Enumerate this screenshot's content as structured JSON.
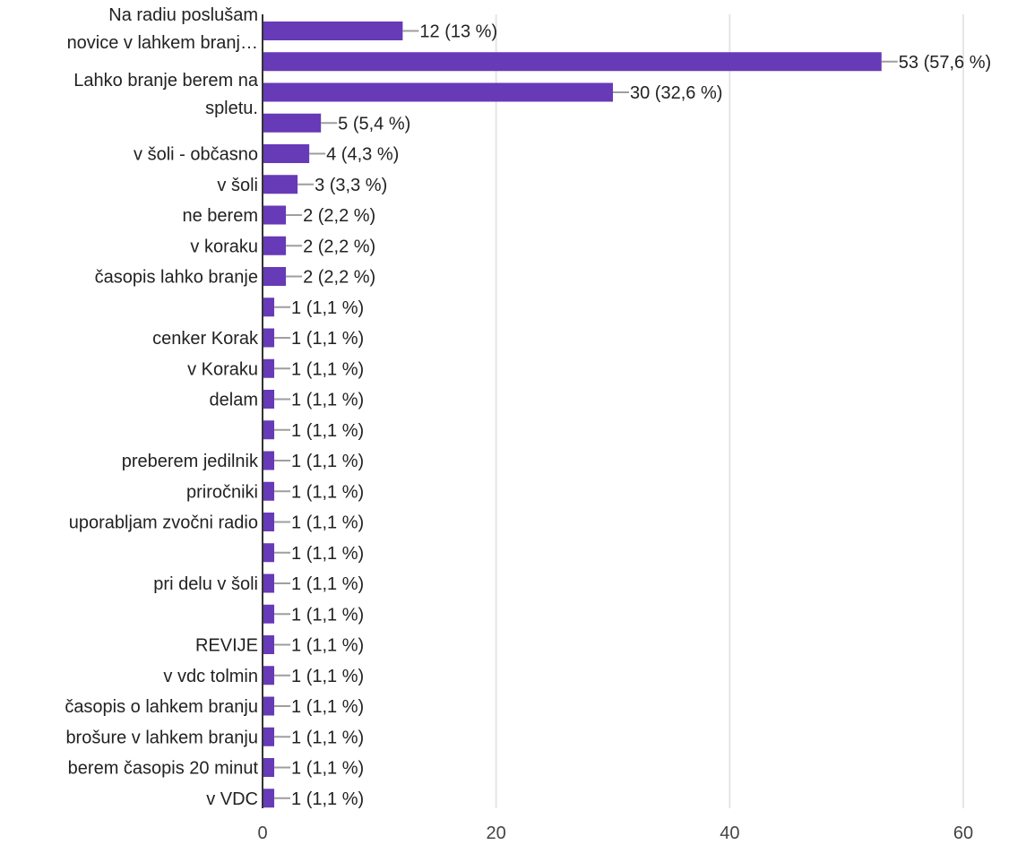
{
  "chart_data": {
    "type": "bar",
    "orientation": "horizontal",
    "title": "",
    "xlabel": "",
    "ylabel": "",
    "xlim": [
      0,
      60
    ],
    "xticks": [
      0,
      20,
      40,
      60
    ],
    "grid": true,
    "bar_color": "#673ab7",
    "categories": [
      "Na radiu poslušam novice v lahkem branj…",
      "Lahko branje berem na spletu.",
      "",
      "",
      "v šoli - občasno",
      "v šoli",
      "ne berem",
      "v koraku",
      "časopis lahko branje",
      "",
      "cenker Korak",
      "v Koraku",
      "delam",
      "",
      "preberem jedilnik",
      "priročniki",
      "uporabljam zvočni radio",
      "",
      "pri delu v šoli",
      "",
      "REVIJE",
      "v vdc tolmin",
      "časopis o lahkem branju",
      "brošure v lahkem branju",
      "berem časopis 20 minut",
      "v VDC"
    ],
    "values": [
      12,
      53,
      30,
      5,
      4,
      3,
      2,
      2,
      2,
      1,
      1,
      1,
      1,
      1,
      1,
      1,
      1,
      1,
      1,
      1,
      1,
      1,
      1,
      1,
      1,
      1
    ],
    "value_labels": [
      "12 (13 %)",
      "53 (57,6 %)",
      "30 (32,6 %)",
      "5 (5,4 %)",
      "4 (4,3 %)",
      "3 (3,3 %)",
      "2 (2,2 %)",
      "2 (2,2 %)",
      "2 (2,2 %)",
      "1 (1,1 %)",
      "1 (1,1 %)",
      "1 (1,1 %)",
      "1 (1,1 %)",
      "1 (1,1 %)",
      "1 (1,1 %)",
      "1 (1,1 %)",
      "1 (1,1 %)",
      "1 (1,1 %)",
      "1 (1,1 %)",
      "1 (1,1 %)",
      "1 (1,1 %)",
      "1 (1,1 %)",
      "1 (1,1 %)",
      "1 (1,1 %)",
      "1 (1,1 %)",
      "1 (1,1 %)"
    ],
    "tick_labels": [
      "0",
      "20",
      "40",
      "60"
    ]
  }
}
